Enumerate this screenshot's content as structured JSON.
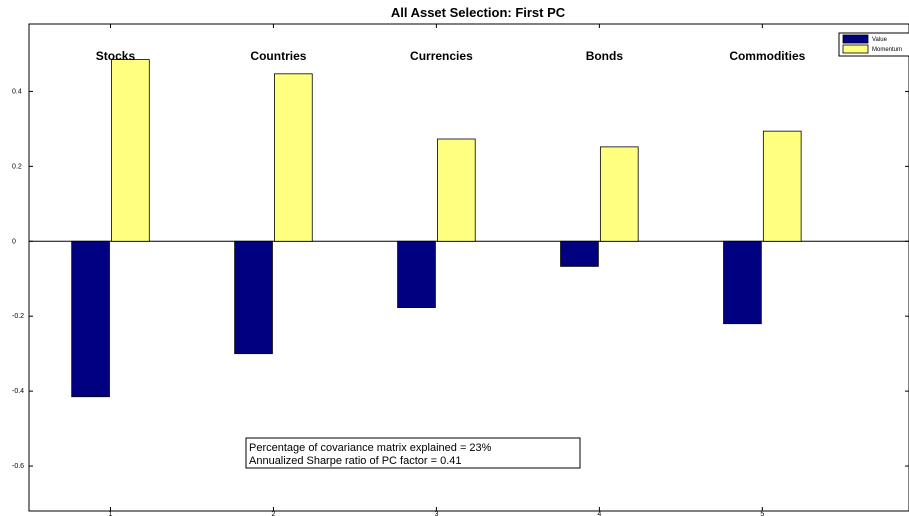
{
  "chart_data": {
    "type": "bar",
    "title": "All Asset Selection:  First PC",
    "categories": [
      "1",
      "2",
      "3",
      "4",
      "5"
    ],
    "category_labels": [
      "Stocks",
      "Countries",
      "Currencies",
      "Bonds",
      "Commodities"
    ],
    "series": [
      {
        "name": "Value",
        "color": "#000080",
        "values": [
          -0.415,
          -0.3,
          -0.177,
          -0.067,
          -0.22
        ]
      },
      {
        "name": "Momentum",
        "color": "#ffff80",
        "values": [
          0.485,
          0.447,
          0.273,
          0.252,
          0.294
        ]
      }
    ],
    "ylim": [
      -0.72,
      0.58
    ],
    "xlim": [
      0.5,
      5.9
    ],
    "yticks": [
      -0.6,
      -0.4,
      -0.2,
      0,
      0.2,
      0.4
    ],
    "ytick_labels": [
      "-0.6",
      "-0.4",
      "-0.2",
      "0",
      "0.2",
      "0.4"
    ],
    "xtick_labels": [
      "1",
      "2",
      "3",
      "4",
      "5"
    ],
    "legend_position": "top-right",
    "grid": false,
    "annotations": [
      "Percentage of covariance matrix explained = 23%",
      "Annualized Sharpe ratio of PC factor = 0.41"
    ]
  }
}
